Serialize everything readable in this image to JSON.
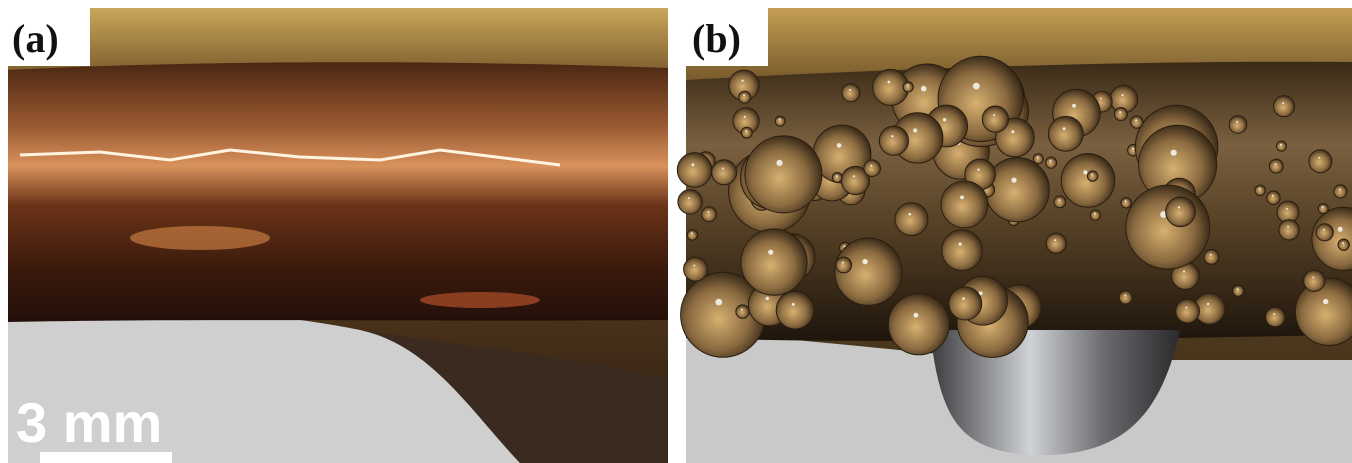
{
  "panels": [
    {
      "label": "(a)",
      "scale_bar": "3 mm"
    },
    {
      "label": "(b)"
    }
  ]
}
